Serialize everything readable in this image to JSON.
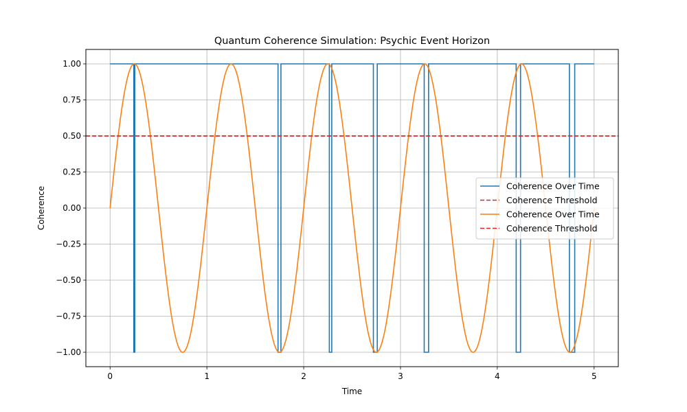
{
  "chart_data": {
    "type": "line",
    "title": "Quantum Coherence Simulation: Psychic Event Horizon",
    "xlabel": "Time",
    "ylabel": "Coherence",
    "xlim": [
      -0.25,
      5.25
    ],
    "ylim": [
      -1.1,
      1.1
    ],
    "xticks": [
      0,
      1,
      2,
      3,
      4,
      5
    ],
    "xtick_labels": [
      "0",
      "1",
      "2",
      "3",
      "4",
      "5"
    ],
    "yticks": [
      -1.0,
      -0.75,
      -0.5,
      -0.25,
      0.0,
      0.25,
      0.5,
      0.75,
      1.0
    ],
    "ytick_labels": [
      "−1.00",
      "−0.75",
      "−0.50",
      "−0.25",
      "0.00",
      "0.25",
      "0.50",
      "0.75",
      "1.00"
    ],
    "grid": true,
    "legend_position": "center-right",
    "series": [
      {
        "name": "Coherence Over Time",
        "color": "#1f77b4",
        "style": "solid",
        "kind": "step-signal",
        "x_range": [
          0,
          5
        ],
        "base_value": 1.0,
        "low_value": -1.0,
        "low_intervals": [
          [
            0.245,
            0.255
          ],
          [
            1.735,
            1.765
          ],
          [
            2.265,
            2.29
          ],
          [
            2.72,
            2.76
          ],
          [
            3.245,
            3.29
          ],
          [
            4.195,
            4.24
          ],
          [
            4.745,
            4.8
          ]
        ]
      },
      {
        "name": "Coherence Threshold",
        "color": "#d62728",
        "style": "dashed",
        "kind": "hline",
        "value": 0.5
      },
      {
        "name": "Coherence Over Time",
        "color": "#ff7f0e",
        "style": "solid",
        "kind": "function",
        "function": "sin(2*pi*x)",
        "x_range": [
          0,
          5
        ]
      },
      {
        "name": "Coherence Threshold",
        "color": "#d62728",
        "style": "dashed",
        "kind": "hline",
        "value": 0.5
      }
    ]
  }
}
